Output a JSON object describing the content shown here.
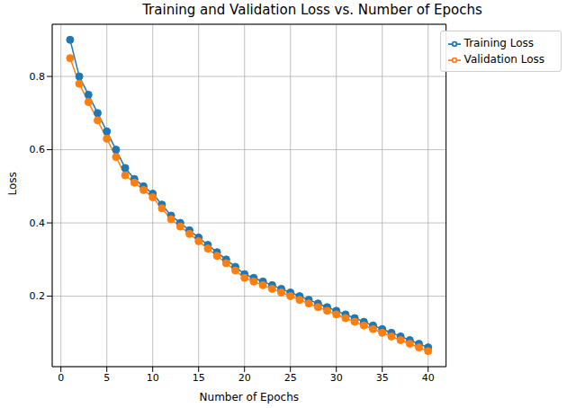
{
  "chart_data": {
    "type": "line",
    "title": "Training and Validation Loss vs. Number of Epochs",
    "x_label": "Number of Epochs",
    "y_label": "Loss",
    "x": [
      1,
      2,
      3,
      4,
      5,
      6,
      7,
      8,
      9,
      10,
      11,
      12,
      13,
      14,
      15,
      16,
      17,
      18,
      19,
      20,
      21,
      22,
      23,
      24,
      25,
      26,
      27,
      28,
      29,
      30,
      31,
      32,
      33,
      34,
      35,
      36,
      37,
      38,
      39,
      40
    ],
    "series": [
      {
        "name": "Training Loss",
        "color": "#1f77b4",
        "marker": "circle",
        "values": [
          0.9,
          0.8,
          0.75,
          0.7,
          0.65,
          0.6,
          0.55,
          0.52,
          0.5,
          0.48,
          0.45,
          0.42,
          0.4,
          0.38,
          0.36,
          0.34,
          0.32,
          0.3,
          0.28,
          0.26,
          0.25,
          0.24,
          0.23,
          0.22,
          0.21,
          0.2,
          0.19,
          0.18,
          0.17,
          0.16,
          0.15,
          0.14,
          0.13,
          0.12,
          0.11,
          0.1,
          0.09,
          0.08,
          0.07,
          0.06
        ]
      },
      {
        "name": "Validation Loss",
        "color": "#ff7f0e",
        "marker": "circle",
        "values": [
          0.85,
          0.78,
          0.73,
          0.68,
          0.63,
          0.58,
          0.53,
          0.51,
          0.49,
          0.47,
          0.44,
          0.41,
          0.39,
          0.37,
          0.35,
          0.33,
          0.31,
          0.29,
          0.27,
          0.25,
          0.24,
          0.23,
          0.22,
          0.21,
          0.2,
          0.19,
          0.18,
          0.17,
          0.16,
          0.15,
          0.14,
          0.13,
          0.12,
          0.11,
          0.1,
          0.09,
          0.08,
          0.07,
          0.06,
          0.05
        ]
      }
    ],
    "xlim": [
      -0.95,
      41.95
    ],
    "ylim": [
      0.0075,
      0.9425
    ],
    "xticks": [
      0,
      5,
      10,
      15,
      20,
      25,
      30,
      35,
      40
    ],
    "yticks": [
      0.2,
      0.4,
      0.6,
      0.8
    ],
    "grid": true,
    "legend": "upper right"
  }
}
